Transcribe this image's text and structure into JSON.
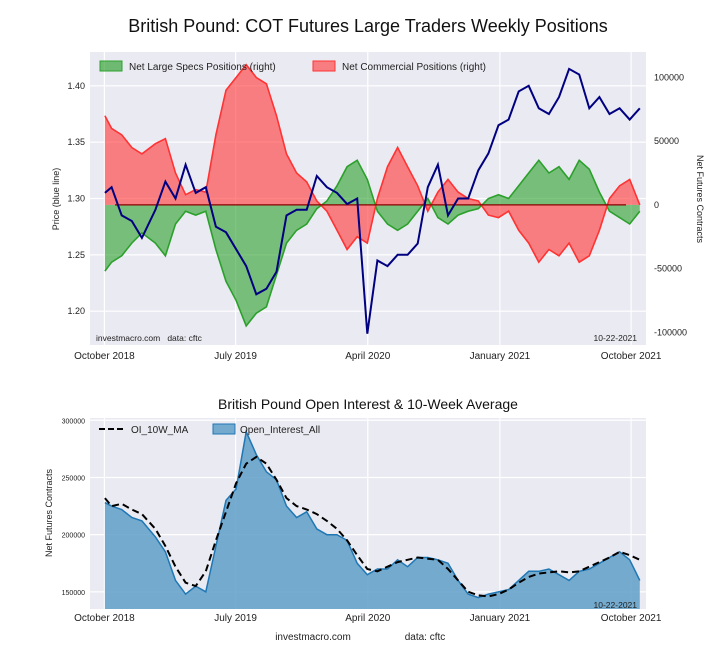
{
  "chart_data": [
    {
      "type": "area",
      "title": "British Pound: COT Futures Large Traders Weekly Positions",
      "ylabel_left": "Price (blue line)",
      "ylabel_right": "Net Futures Contracts",
      "ylim_left": [
        1.17,
        1.43
      ],
      "ylim_right": [
        -110000,
        120000
      ],
      "left_ticks": [
        "1.20",
        "1.25",
        "1.30",
        "1.35",
        "1.40"
      ],
      "left_tick_values": [
        1.2,
        1.25,
        1.3,
        1.35,
        1.4
      ],
      "right_ticks": [
        "-100000",
        "-50000",
        "0",
        "50000",
        "100000"
      ],
      "right_tick_values": [
        -100000,
        -50000,
        0,
        50000,
        100000
      ],
      "x_ticks": [
        "October 2018",
        "July 2019",
        "April 2020",
        "January 2021",
        "October 2021"
      ],
      "x_tick_dates": [
        "2018-10-01",
        "2019-07-01",
        "2020-04-01",
        "2021-01-01",
        "2021-10-01"
      ],
      "x_range": [
        "2018-09-01",
        "2021-11-01"
      ],
      "grid": true,
      "legend_position": "top-left",
      "colors": {
        "specs": "#2ca02c",
        "commercial": "#ff3333",
        "price": "#000080",
        "zero": "#8b0000",
        "plot_bg": "#eaeaf2"
      },
      "series": [
        {
          "name": "Net Large Specs Positions (right)",
          "kind": "area",
          "x": [
            "2018-10-02",
            "2018-10-16",
            "2018-11-06",
            "2018-11-27",
            "2018-12-18",
            "2019-01-15",
            "2019-02-05",
            "2019-02-26",
            "2019-03-19",
            "2019-04-09",
            "2019-04-30",
            "2019-05-21",
            "2019-06-11",
            "2019-07-02",
            "2019-07-23",
            "2019-08-13",
            "2019-09-03",
            "2019-09-24",
            "2019-10-15",
            "2019-11-05",
            "2019-11-26",
            "2019-12-17",
            "2020-01-07",
            "2020-01-28",
            "2020-02-18",
            "2020-03-10",
            "2020-03-31",
            "2020-04-21",
            "2020-05-12",
            "2020-06-02",
            "2020-06-23",
            "2020-07-14",
            "2020-08-04",
            "2020-08-25",
            "2020-09-15",
            "2020-10-06",
            "2020-10-27",
            "2020-11-17",
            "2020-12-08",
            "2020-12-29",
            "2021-01-19",
            "2021-02-09",
            "2021-03-02",
            "2021-03-23",
            "2021-04-13",
            "2021-05-04",
            "2021-05-25",
            "2021-06-15",
            "2021-07-06",
            "2021-07-27",
            "2021-08-17",
            "2021-09-07",
            "2021-09-28",
            "2021-10-19"
          ],
          "values": [
            -52000,
            -45000,
            -40000,
            -30000,
            -22000,
            -30000,
            -40000,
            -15000,
            -5000,
            -8000,
            -5000,
            -35000,
            -60000,
            -75000,
            -95000,
            -85000,
            -80000,
            -55000,
            -30000,
            -20000,
            -15000,
            -3000,
            3000,
            15000,
            30000,
            35000,
            20000,
            -5000,
            -15000,
            -20000,
            -15000,
            -5000,
            5000,
            -10000,
            -15000,
            -8000,
            -5000,
            -3000,
            5000,
            8000,
            5000,
            15000,
            25000,
            35000,
            25000,
            30000,
            20000,
            35000,
            28000,
            10000,
            -5000,
            -10000,
            -15000,
            -5000
          ]
        },
        {
          "name": "Net Commercial Positions (right)",
          "kind": "area",
          "x": [
            "2018-10-02",
            "2018-10-16",
            "2018-11-06",
            "2018-11-27",
            "2018-12-18",
            "2019-01-15",
            "2019-02-05",
            "2019-02-26",
            "2019-03-19",
            "2019-04-09",
            "2019-04-30",
            "2019-05-21",
            "2019-06-11",
            "2019-07-02",
            "2019-07-23",
            "2019-08-13",
            "2019-09-03",
            "2019-09-24",
            "2019-10-15",
            "2019-11-05",
            "2019-11-26",
            "2019-12-17",
            "2020-01-07",
            "2020-01-28",
            "2020-02-18",
            "2020-03-10",
            "2020-03-31",
            "2020-04-21",
            "2020-05-12",
            "2020-06-02",
            "2020-06-23",
            "2020-07-14",
            "2020-08-04",
            "2020-08-25",
            "2020-09-15",
            "2020-10-06",
            "2020-10-27",
            "2020-11-17",
            "2020-12-08",
            "2020-12-29",
            "2021-01-19",
            "2021-02-09",
            "2021-03-02",
            "2021-03-23",
            "2021-04-13",
            "2021-05-04",
            "2021-05-25",
            "2021-06-15",
            "2021-07-06",
            "2021-07-27",
            "2021-08-17",
            "2021-09-07",
            "2021-09-28",
            "2021-10-19"
          ],
          "values": [
            70000,
            60000,
            55000,
            45000,
            40000,
            48000,
            52000,
            25000,
            8000,
            12000,
            10000,
            55000,
            90000,
            100000,
            110000,
            100000,
            95000,
            70000,
            40000,
            25000,
            18000,
            3000,
            -5000,
            -20000,
            -35000,
            -25000,
            -30000,
            5000,
            30000,
            45000,
            30000,
            15000,
            -5000,
            10000,
            20000,
            10000,
            5000,
            3000,
            -8000,
            -10000,
            -5000,
            -20000,
            -30000,
            -45000,
            -35000,
            -40000,
            -30000,
            -45000,
            -40000,
            -20000,
            5000,
            15000,
            20000,
            0
          ]
        },
        {
          "name": "Price (blue line)",
          "kind": "line",
          "axis": "left",
          "x": [
            "2018-10-02",
            "2018-10-16",
            "2018-11-06",
            "2018-11-27",
            "2018-12-18",
            "2019-01-15",
            "2019-02-05",
            "2019-02-26",
            "2019-03-19",
            "2019-04-09",
            "2019-04-30",
            "2019-05-21",
            "2019-06-11",
            "2019-07-02",
            "2019-07-23",
            "2019-08-13",
            "2019-09-03",
            "2019-09-24",
            "2019-10-15",
            "2019-11-05",
            "2019-11-26",
            "2019-12-17",
            "2020-01-07",
            "2020-01-28",
            "2020-02-18",
            "2020-03-10",
            "2020-03-31",
            "2020-04-21",
            "2020-05-12",
            "2020-06-02",
            "2020-06-23",
            "2020-07-14",
            "2020-08-04",
            "2020-08-25",
            "2020-09-15",
            "2020-10-06",
            "2020-10-27",
            "2020-11-17",
            "2020-12-08",
            "2020-12-29",
            "2021-01-19",
            "2021-02-09",
            "2021-03-02",
            "2021-03-23",
            "2021-04-13",
            "2021-05-04",
            "2021-05-25",
            "2021-06-15",
            "2021-07-06",
            "2021-07-27",
            "2021-08-17",
            "2021-09-07",
            "2021-09-28",
            "2021-10-19"
          ],
          "values": [
            1.305,
            1.31,
            1.285,
            1.28,
            1.265,
            1.29,
            1.315,
            1.3,
            1.33,
            1.305,
            1.31,
            1.275,
            1.27,
            1.255,
            1.24,
            1.215,
            1.22,
            1.235,
            1.285,
            1.29,
            1.29,
            1.32,
            1.31,
            1.305,
            1.295,
            1.3,
            1.18,
            1.245,
            1.24,
            1.25,
            1.25,
            1.26,
            1.31,
            1.33,
            1.285,
            1.3,
            1.3,
            1.325,
            1.34,
            1.365,
            1.37,
            1.395,
            1.4,
            1.38,
            1.375,
            1.39,
            1.415,
            1.41,
            1.38,
            1.39,
            1.375,
            1.38,
            1.37,
            1.38
          ]
        }
      ],
      "annotations": [
        "investmacro.com   data: cftc",
        "10-22-2021"
      ]
    },
    {
      "type": "area",
      "title": "British Pound Open Interest & 10-Week Average",
      "ylabel": "Net Futures Contracts",
      "ylim": [
        135000,
        302000
      ],
      "y_ticks": [
        "150000",
        "200000",
        "250000",
        "300000"
      ],
      "y_tick_values": [
        150000,
        200000,
        250000,
        300000
      ],
      "x_ticks": [
        "October 2018",
        "July 2019",
        "April 2020",
        "January 2021",
        "October 2021"
      ],
      "x_tick_dates": [
        "2018-10-01",
        "2019-07-01",
        "2020-04-01",
        "2021-01-01",
        "2021-10-01"
      ],
      "x_range": [
        "2018-09-01",
        "2021-11-01"
      ],
      "grid": true,
      "legend_position": "top-left",
      "colors": {
        "oi_fill": "#5f9fc8",
        "oi_line": "#1f77b4",
        "ma": "#000000",
        "plot_bg": "#eaeaf2"
      },
      "series": [
        {
          "name": "Open_Interest_All",
          "kind": "area",
          "x": [
            "2018-10-02",
            "2018-10-16",
            "2018-11-06",
            "2018-11-27",
            "2018-12-18",
            "2019-01-15",
            "2019-02-05",
            "2019-02-26",
            "2019-03-19",
            "2019-04-09",
            "2019-04-30",
            "2019-05-21",
            "2019-06-11",
            "2019-07-02",
            "2019-07-23",
            "2019-08-13",
            "2019-09-03",
            "2019-09-24",
            "2019-10-15",
            "2019-11-05",
            "2019-11-26",
            "2019-12-17",
            "2020-01-07",
            "2020-01-28",
            "2020-02-18",
            "2020-03-10",
            "2020-03-31",
            "2020-04-21",
            "2020-05-12",
            "2020-06-02",
            "2020-06-23",
            "2020-07-14",
            "2020-08-04",
            "2020-08-25",
            "2020-09-15",
            "2020-10-06",
            "2020-10-27",
            "2020-11-17",
            "2020-12-08",
            "2020-12-29",
            "2021-01-19",
            "2021-02-09",
            "2021-03-02",
            "2021-03-23",
            "2021-04-13",
            "2021-05-04",
            "2021-05-25",
            "2021-06-15",
            "2021-07-06",
            "2021-07-27",
            "2021-08-17",
            "2021-09-07",
            "2021-09-28",
            "2021-10-19"
          ],
          "values": [
            228000,
            225000,
            222000,
            215000,
            212000,
            198000,
            185000,
            160000,
            148000,
            155000,
            150000,
            190000,
            230000,
            240000,
            290000,
            270000,
            255000,
            248000,
            225000,
            215000,
            220000,
            205000,
            200000,
            200000,
            195000,
            175000,
            165000,
            170000,
            170000,
            178000,
            172000,
            180000,
            180000,
            178000,
            175000,
            160000,
            148000,
            145000,
            148000,
            150000,
            152000,
            160000,
            168000,
            168000,
            170000,
            165000,
            160000,
            168000,
            170000,
            175000,
            180000,
            185000,
            178000,
            160000
          ]
        },
        {
          "name": "OI_10W_MA",
          "kind": "line",
          "x": [
            "2018-10-02",
            "2018-10-16",
            "2018-11-06",
            "2018-11-27",
            "2018-12-18",
            "2019-01-15",
            "2019-02-05",
            "2019-02-26",
            "2019-03-19",
            "2019-04-09",
            "2019-04-30",
            "2019-05-21",
            "2019-06-11",
            "2019-07-02",
            "2019-07-23",
            "2019-08-13",
            "2019-09-03",
            "2019-09-24",
            "2019-10-15",
            "2019-11-05",
            "2019-11-26",
            "2019-12-17",
            "2020-01-07",
            "2020-01-28",
            "2020-02-18",
            "2020-03-10",
            "2020-03-31",
            "2020-04-21",
            "2020-05-12",
            "2020-06-02",
            "2020-06-23",
            "2020-07-14",
            "2020-08-04",
            "2020-08-25",
            "2020-09-15",
            "2020-10-06",
            "2020-10-27",
            "2020-11-17",
            "2020-12-08",
            "2020-12-29",
            "2021-01-19",
            "2021-02-09",
            "2021-03-02",
            "2021-03-23",
            "2021-04-13",
            "2021-05-04",
            "2021-05-25",
            "2021-06-15",
            "2021-07-06",
            "2021-07-27",
            "2021-08-17",
            "2021-09-07",
            "2021-09-28",
            "2021-10-19"
          ],
          "values": [
            232000,
            225000,
            227000,
            222000,
            218000,
            205000,
            190000,
            172000,
            158000,
            155000,
            168000,
            195000,
            220000,
            245000,
            262000,
            268000,
            262000,
            248000,
            232000,
            225000,
            222000,
            218000,
            212000,
            205000,
            195000,
            182000,
            170000,
            168000,
            172000,
            176000,
            178000,
            180000,
            179000,
            178000,
            170000,
            160000,
            150000,
            147000,
            146000,
            148000,
            152000,
            158000,
            163000,
            166000,
            167000,
            168000,
            167000,
            168000,
            172000,
            176000,
            180000,
            185000,
            182000,
            178000
          ]
        }
      ],
      "annotations": [
        "10-22-2021"
      ],
      "footer": [
        "investmacro.com",
        "data: cftc"
      ]
    }
  ]
}
